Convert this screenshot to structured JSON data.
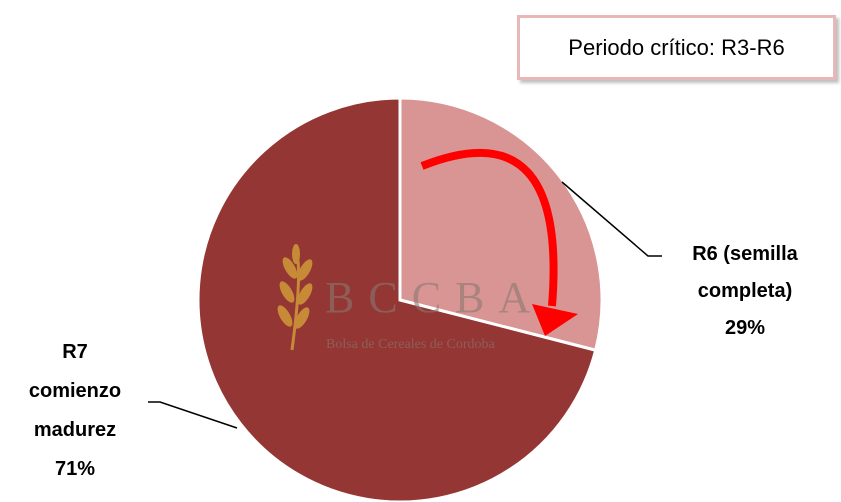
{
  "chart_data": {
    "type": "pie",
    "categories": [
      "R6 (semilla completa)",
      "R7 comienzo madurez"
    ],
    "values": [
      29,
      71
    ],
    "value_labels": [
      "29%",
      "71%"
    ],
    "colors": [
      "#d99594",
      "#943634"
    ],
    "annotation": "Periodo crítico: R3-R6",
    "watermark": {
      "title": "BCCBA",
      "subtitle": "Bolsa de Cereales de Cordoba"
    }
  }
}
